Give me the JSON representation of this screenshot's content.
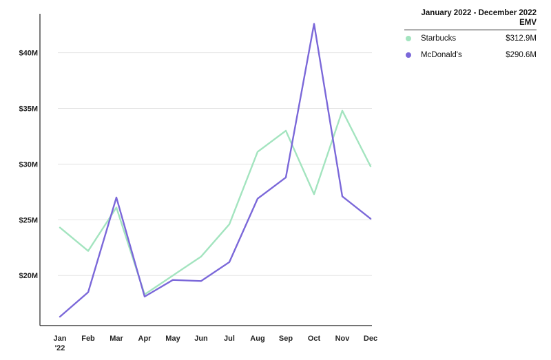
{
  "chart_data": {
    "type": "line",
    "categories": [
      "Jan '22",
      "Feb",
      "Mar",
      "Apr",
      "May",
      "Jun",
      "Jul",
      "Aug",
      "Sep",
      "Oct",
      "Nov",
      "Dec"
    ],
    "x_tick_labels": [
      {
        "lines": [
          "Jan",
          "'22"
        ],
        "bold": true
      },
      {
        "lines": [
          "Feb"
        ],
        "bold": true
      },
      {
        "lines": [
          "Mar"
        ],
        "bold": true
      },
      {
        "lines": [
          "Apr"
        ],
        "bold": true
      },
      {
        "lines": [
          "May"
        ],
        "bold": true
      },
      {
        "lines": [
          "Jun"
        ],
        "bold": true
      },
      {
        "lines": [
          "Jul"
        ],
        "bold": true
      },
      {
        "lines": [
          "Aug"
        ],
        "bold": true
      },
      {
        "lines": [
          "Sep"
        ],
        "bold": true
      },
      {
        "lines": [
          "Oct"
        ],
        "bold": true
      },
      {
        "lines": [
          "Nov"
        ],
        "bold": true
      },
      {
        "lines": [
          "Dec"
        ],
        "bold": true
      }
    ],
    "y_ticks": [
      20,
      25,
      30,
      35,
      40
    ],
    "y_tick_labels": [
      "$20M",
      "$25M",
      "$30M",
      "$35M",
      "$40M"
    ],
    "ylim": [
      15.5,
      43.5
    ],
    "y_unit": "millions USD",
    "grid": true,
    "legend_position": "top-right",
    "legend_title": "January 2022 - December 2022 EMV",
    "series": [
      {
        "name": "Starbucks",
        "color": "#a3e4bf",
        "total": "$312.9M",
        "values": [
          24.3,
          22.2,
          26.1,
          18.3,
          20.0,
          21.7,
          24.6,
          31.1,
          33.0,
          27.3,
          34.8,
          29.8
        ]
      },
      {
        "name": "McDonald's",
        "color": "#7b68d9",
        "total": "$290.6M",
        "values": [
          16.3,
          18.5,
          27.0,
          18.1,
          19.6,
          19.5,
          21.2,
          26.9,
          28.8,
          42.6,
          27.1,
          25.1
        ]
      }
    ]
  }
}
